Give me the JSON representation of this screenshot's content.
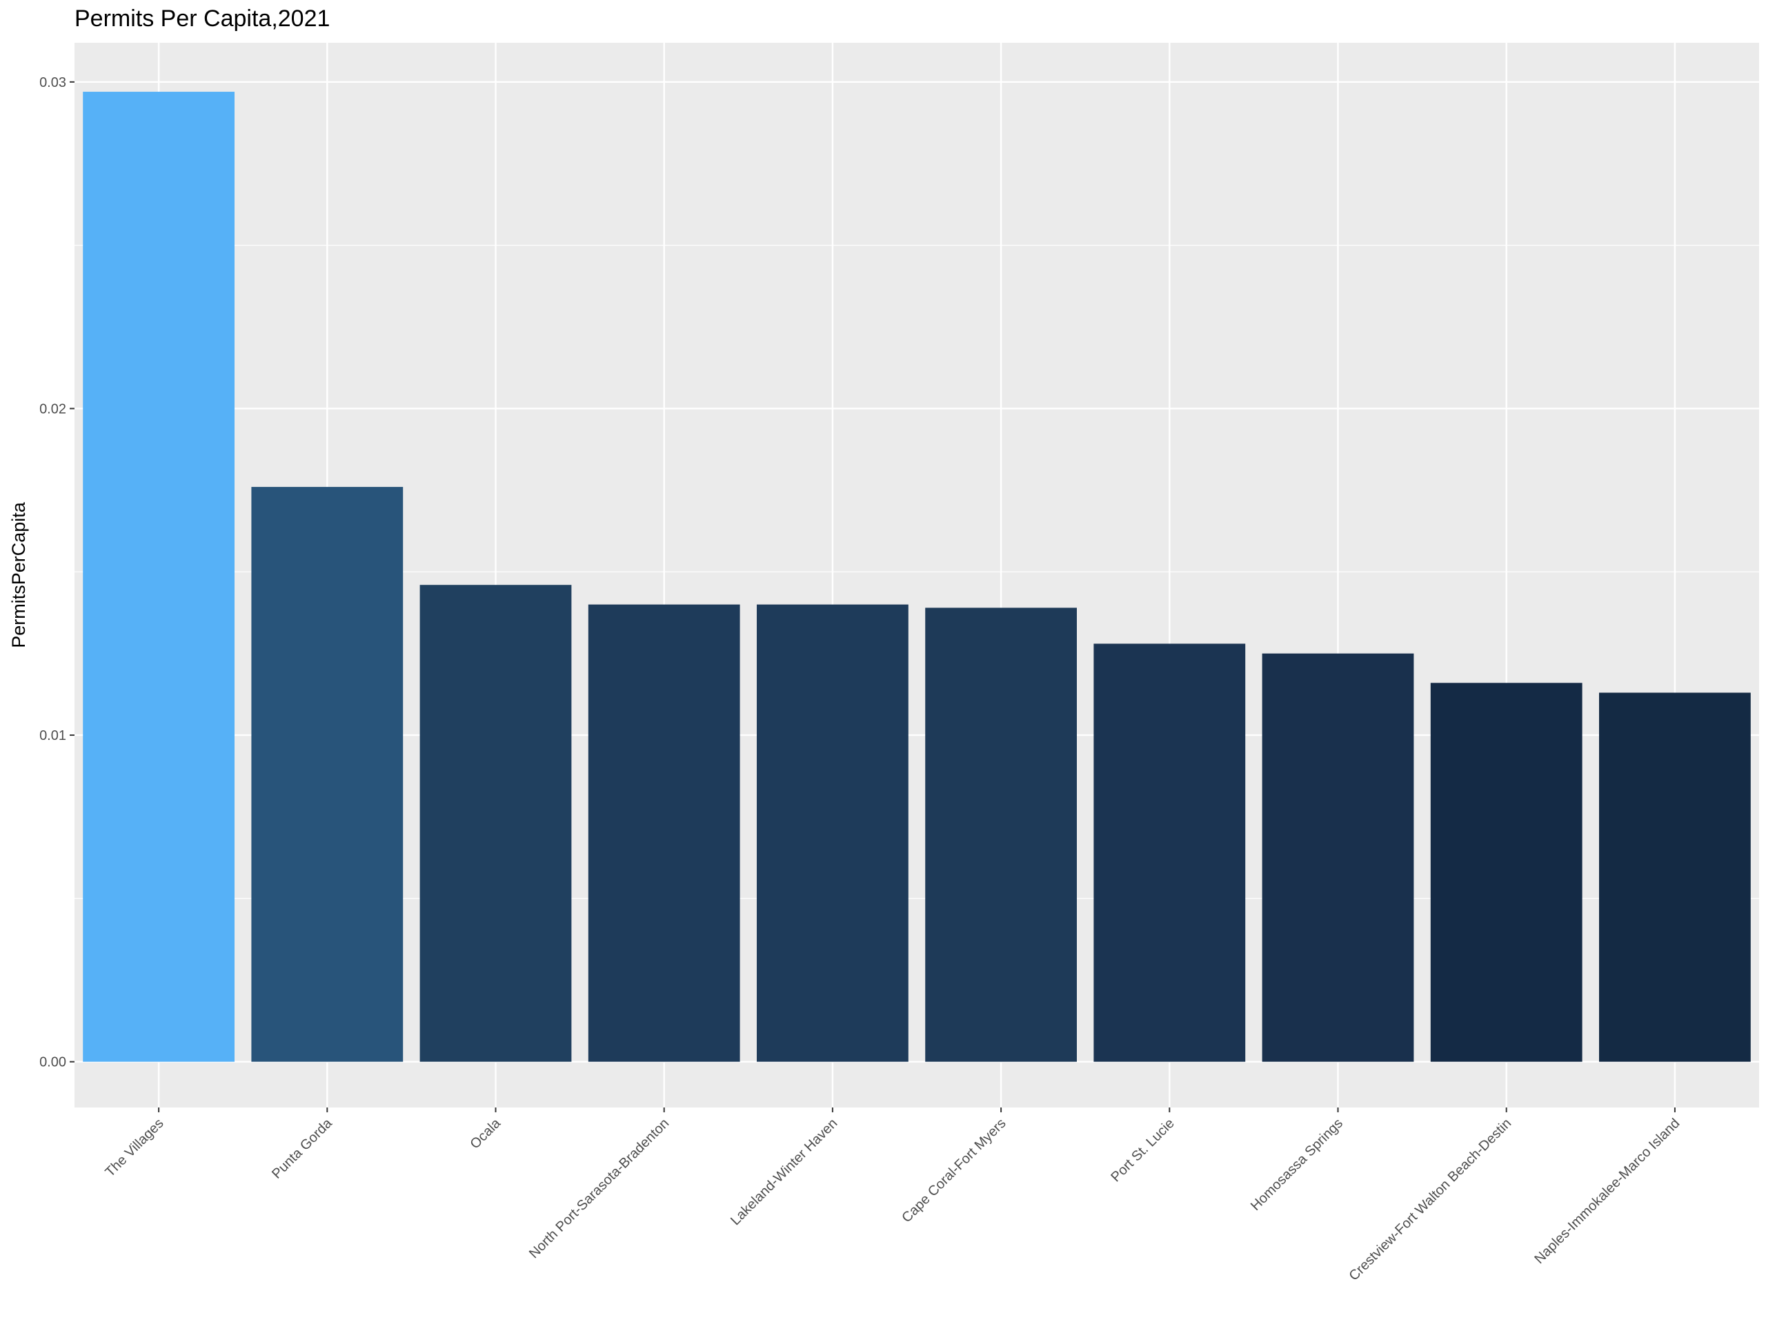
{
  "chart_data": {
    "type": "bar",
    "title": "Permits Per Capita,2021",
    "xlabel": "",
    "ylabel": "PermitsPerCapita",
    "ylim": [
      -0.0014,
      0.0312
    ],
    "yticks": [
      0.0,
      0.01,
      0.02,
      0.03
    ],
    "ytick_labels": [
      "0.00",
      "0.01",
      "0.02",
      "0.03"
    ],
    "grid": true,
    "legend": "none",
    "panel_background": "#ebebeb",
    "categories": [
      "The Villages",
      "Punta Gorda",
      "Ocala",
      "North Port-Sarasota-Bradenton",
      "Lakeland-Winter Haven",
      "Cape Coral-Fort Myers",
      "Port St. Lucie",
      "Homosassa Springs",
      "Crestview-Fort Walton Beach-Destin",
      "Naples-Immokalee-Marco Island"
    ],
    "values": [
      0.0297,
      0.0176,
      0.0146,
      0.014,
      0.014,
      0.0139,
      0.0128,
      0.0125,
      0.0116,
      0.0113
    ],
    "colors": [
      "#56b1f7",
      "#28547a",
      "#20405f",
      "#1e3b5a",
      "#1e3b5a",
      "#1e3a58",
      "#1b3452",
      "#19304d",
      "#142a45",
      "#142a44"
    ]
  }
}
